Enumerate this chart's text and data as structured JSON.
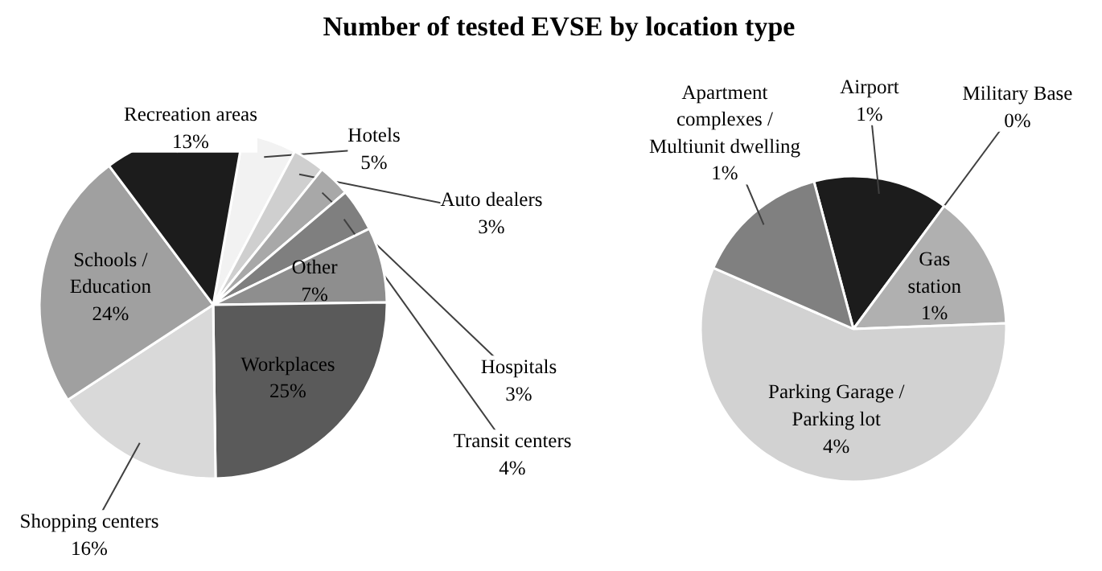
{
  "chart_data": [
    {
      "type": "pie",
      "title": "Number of tested EVSE by location type",
      "categories": [
        "Hotels",
        "Auto dealers",
        "Hospitals",
        "Transit centers",
        "Other",
        "Workplaces",
        "Shopping centers",
        "Schools /\nEducation",
        "Recreation areas"
      ],
      "values": [
        5,
        3,
        3,
        4,
        7,
        25,
        16,
        24,
        13
      ],
      "value_labels": [
        "5%",
        "3%",
        "3%",
        "4%",
        "7%",
        "25%",
        "16%",
        "24%",
        "13%"
      ],
      "colors": [
        "#f2f2f2",
        "#cfcfcf",
        "#a8a8a8",
        "#7f7f7f",
        "#8e8e8e",
        "#5a5a5a",
        "#d9d9d9",
        "#a0a0a0",
        "#1c1c1c"
      ]
    },
    {
      "type": "pie",
      "categories": [
        "Airport",
        "Military Base",
        "Gas\nstation",
        "Parking Garage /\nParking lot",
        "Apartment\ncomplexes /\nMultiunit dwelling"
      ],
      "values": [
        1,
        0,
        1,
        4,
        1
      ],
      "value_labels": [
        "1%",
        "0%",
        "1%",
        "4%",
        "1%"
      ],
      "colors": [
        "#1c1c1c",
        "#f2f2f2",
        "#b0b0b0",
        "#d2d2d2",
        "#808080"
      ]
    }
  ]
}
